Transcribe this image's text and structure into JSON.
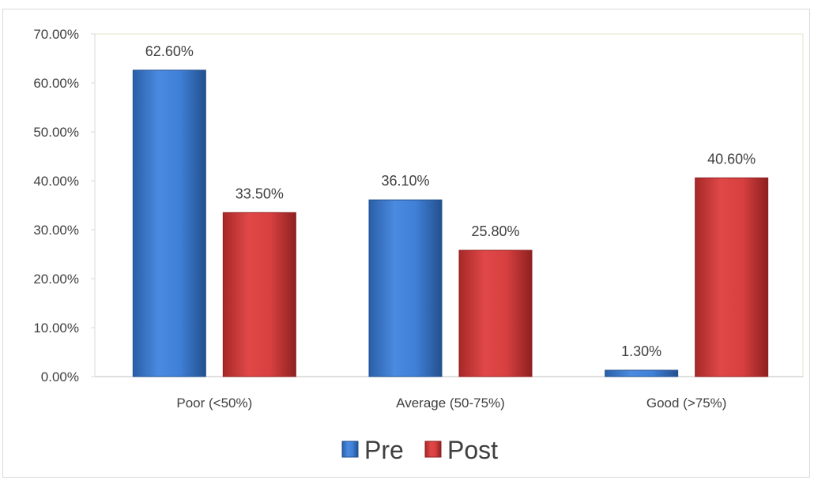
{
  "chart_data": {
    "type": "bar",
    "categories": [
      "Poor (<50%)",
      "Average (50-75%)",
      "Good (>75%)"
    ],
    "series": [
      {
        "name": "Pre",
        "values": [
          62.6,
          36.1,
          1.3
        ],
        "labels": [
          "62.60%",
          "36.10%",
          "1.30%"
        ],
        "color": "#3a78c9"
      },
      {
        "name": "Post",
        "values": [
          33.5,
          25.8,
          40.6
        ],
        "labels": [
          "33.50%",
          "25.80%",
          "40.60%"
        ],
        "color": "#d23a3a"
      }
    ],
    "y_ticks": [
      "0.00%",
      "10.00%",
      "20.00%",
      "30.00%",
      "40.00%",
      "50.00%",
      "60.00%",
      "70.00%"
    ],
    "ylim": [
      0,
      70
    ],
    "grid": false,
    "legend_position": "bottom"
  }
}
